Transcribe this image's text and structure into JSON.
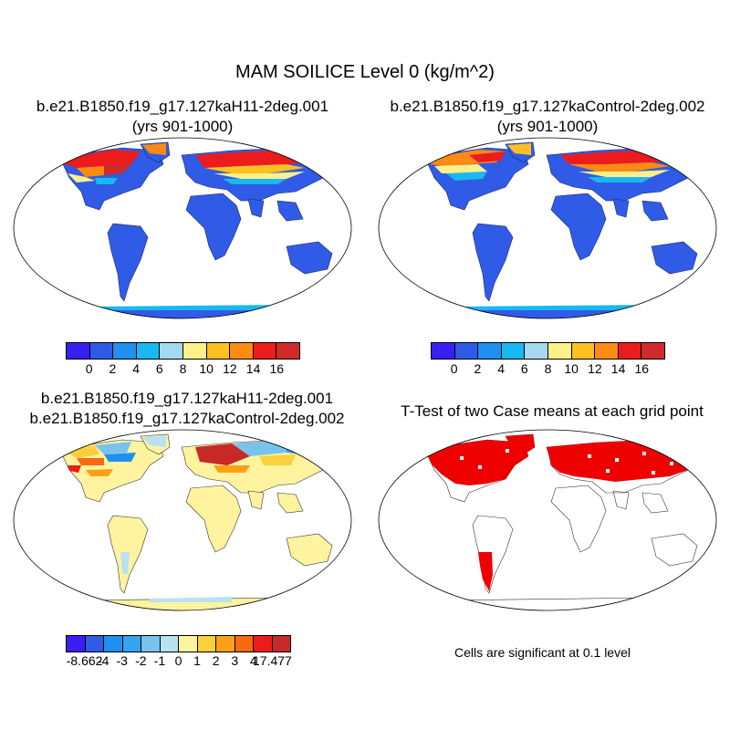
{
  "title": "MAM SOILICE Level 0 (kg/m^2)",
  "panels": [
    {
      "line1": "b.e21.B1850.f19_g17.127kaH11-2deg.001",
      "line2": "(yrs 901-1000)"
    },
    {
      "line1": "b.e21.B1850.f19_g17.127kaControl-2deg.002",
      "line2": "(yrs 901-1000)"
    },
    {
      "line1": "b.e21.B1850.f19_g17.127kaH11-2deg.001",
      "line2": "b.e21.B1850.f19_g17.127kaControl-2deg.002"
    },
    {
      "line1": "T-Test of two Case means at each grid point",
      "line2": ""
    }
  ],
  "colorbar_top": {
    "colors": [
      "#3a1ff5",
      "#2f5be6",
      "#1f8ff0",
      "#19b8f2",
      "#a6d9ee",
      "#fff08a",
      "#fcc021",
      "#fc8a13",
      "#ec1c1c",
      "#cf2b2b"
    ],
    "ticks": [
      "0",
      "2",
      "4",
      "6",
      "8",
      "10",
      "12",
      "14",
      "16"
    ]
  },
  "colorbar_diff": {
    "colors": [
      "#3a1ff5",
      "#2f5be6",
      "#1f8ff0",
      "#33a5f0",
      "#77c3ee",
      "#b8e2f2",
      "#fff3a0",
      "#fcd03a",
      "#fca018",
      "#f86a12",
      "#ec1c1c",
      "#c82828"
    ],
    "ticks": [
      "-8.662",
      "-4",
      "-3",
      "-2",
      "-1",
      "0",
      "1",
      "2",
      "3",
      "4",
      "17.477"
    ]
  },
  "significance_note": "Cells are significant at 0.1 level"
}
